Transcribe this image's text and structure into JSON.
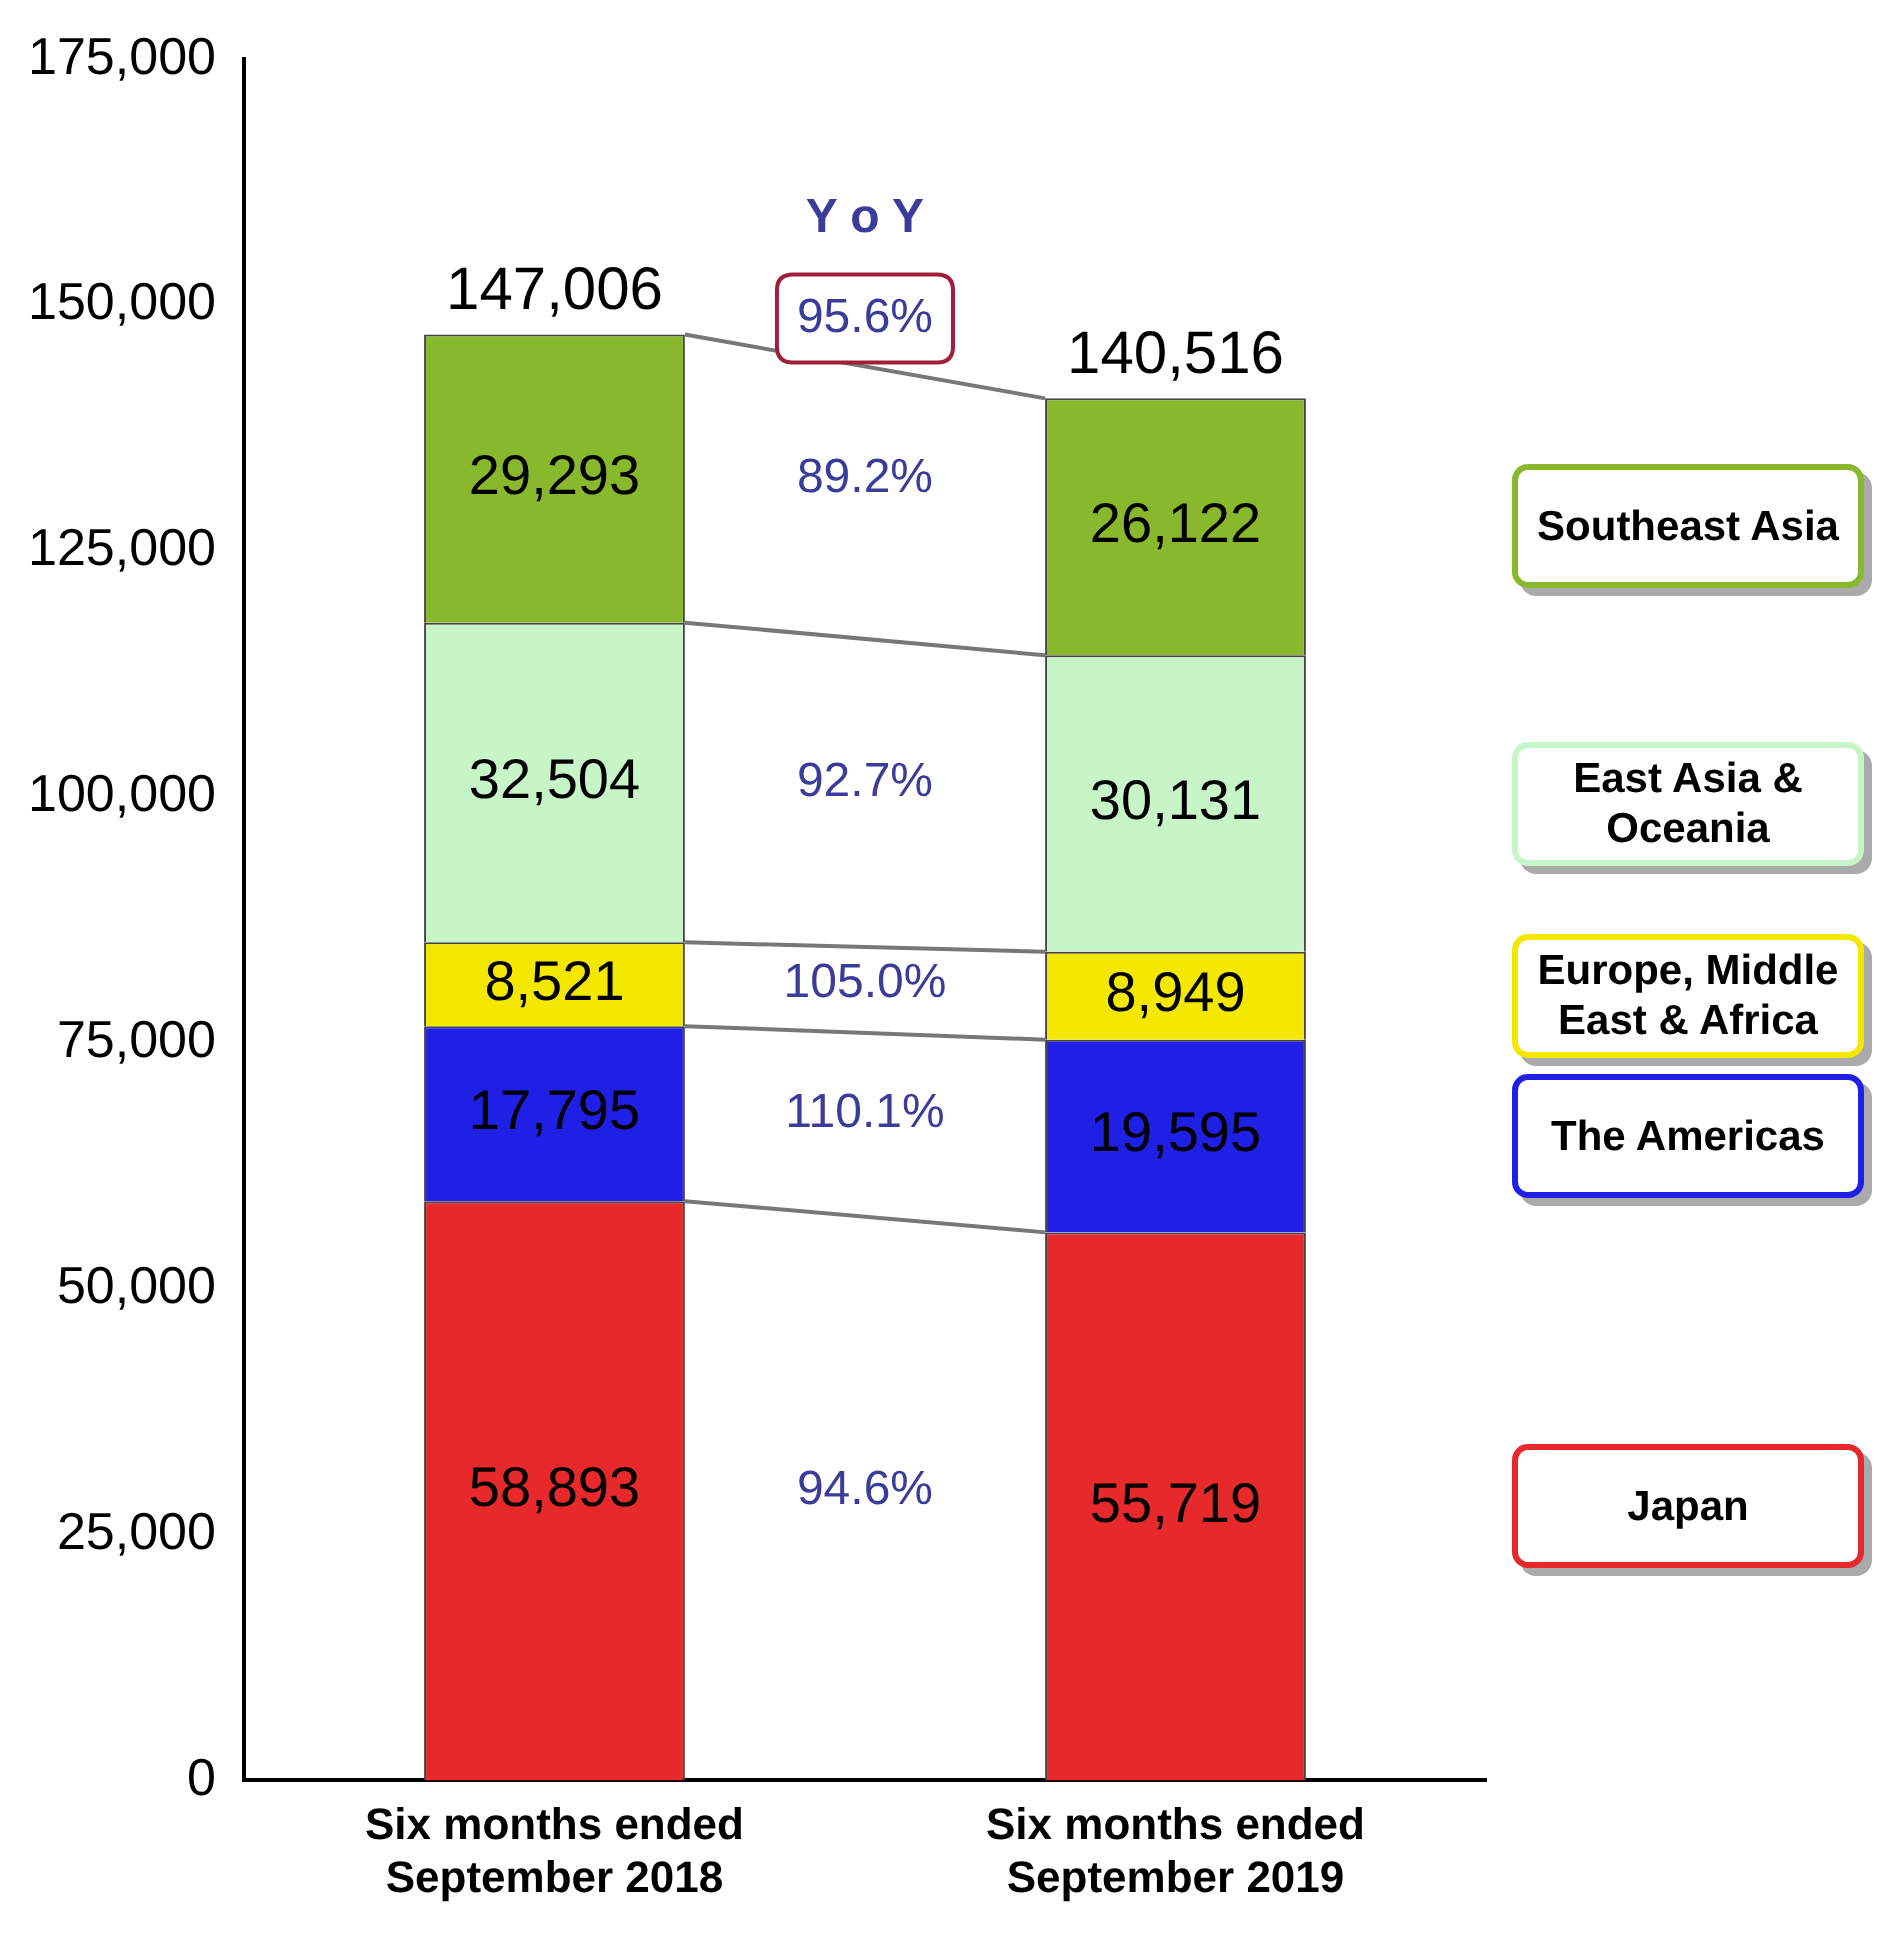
{
  "chart_data": {
    "type": "bar",
    "stacked": true,
    "categories": [
      "Six months ended September 2018",
      "Six months ended September 2019"
    ],
    "series": [
      {
        "name": "Japan",
        "color": "#e8292b",
        "values": [
          58893,
          55719
        ],
        "value_labels": [
          "58,893",
          "55,719"
        ]
      },
      {
        "name": "The Americas",
        "color": "#1f1fe6",
        "values": [
          17795,
          19595
        ],
        "value_labels": [
          "17,795",
          "19,595"
        ]
      },
      {
        "name": "Europe, Middle East & Africa",
        "color": "#f5e800",
        "values": [
          8521,
          8949
        ],
        "value_labels": [
          "8,521",
          "8,949"
        ]
      },
      {
        "name": "East Asia & Oceania",
        "color": "#c8f5c8",
        "values": [
          32504,
          30131
        ],
        "value_labels": [
          "32,504",
          "30,131"
        ]
      },
      {
        "name": "Southeast Asia",
        "color": "#8ab82c",
        "values": [
          29293,
          26122
        ],
        "value_labels": [
          "29,293",
          "26,122"
        ]
      }
    ],
    "ylim": [
      0,
      175000
    ],
    "yticks": [
      0,
      {
        "value": 25000,
        "label": "25,000"
      },
      {
        "value": 50000,
        "label": "50,000"
      },
      {
        "value": 75000,
        "label": "75,000"
      },
      {
        "value": 100000,
        "label": "100,000"
      },
      {
        "value": 125000,
        "label": "125,000"
      },
      {
        "value": 150000,
        "label": "150,000"
      },
      {
        "value": 175000,
        "label": "175,000"
      }
    ],
    "grid": false,
    "legend": "right",
    "totals": [
      "147,006",
      "140,516"
    ],
    "annotations": [
      "Y o Y",
      "95.6%",
      "94.6%",
      "110.1%",
      "105.0%",
      "92.7%",
      "89.2%"
    ]
  }
}
